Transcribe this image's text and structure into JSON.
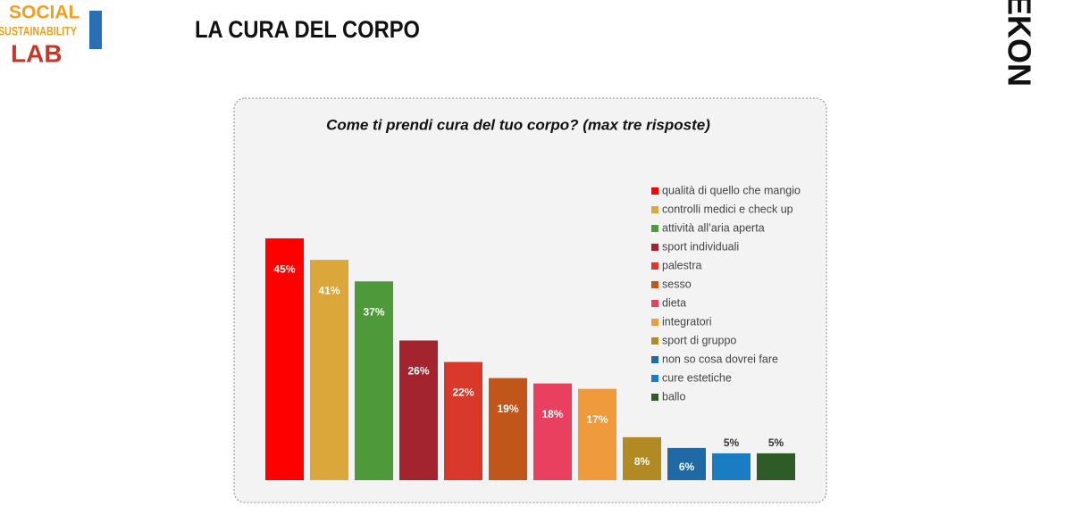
{
  "header": {
    "logo_line1": "SOCIAL",
    "logo_line2": "SUSTAINABILITY",
    "logo_line3": "LAB",
    "title": "LA CURA DEL CORPO",
    "brand": "EKON"
  },
  "chart_data": {
    "type": "bar",
    "title": "Come ti prendi cura del tuo corpo? (max tre risposte)",
    "categories": [
      "qualità di quello che mangio",
      "controlli medici e check up",
      "attività all’aria aperta",
      "sport individuali",
      "palestra",
      "sesso",
      "dieta",
      "integratori",
      "sport di gruppo",
      "non so cosa dovrei fare",
      "cure estetiche",
      "ballo"
    ],
    "values": [
      45,
      41,
      37,
      26,
      22,
      19,
      18,
      17,
      8,
      6,
      5,
      5
    ],
    "value_labels": [
      "45%",
      "41%",
      "37%",
      "26%",
      "22%",
      "19%",
      "18%",
      "17%",
      "8%",
      "6%",
      "5%",
      "5%"
    ],
    "colors": [
      "#fe0000",
      "#dba63a",
      "#4e9a3a",
      "#a3232f",
      "#d8392a",
      "#c1561b",
      "#e9405f",
      "#f09a3e",
      "#b28a24",
      "#1f6aa5",
      "#1a7dc4",
      "#2e5b28"
    ],
    "legend": "right"
  }
}
